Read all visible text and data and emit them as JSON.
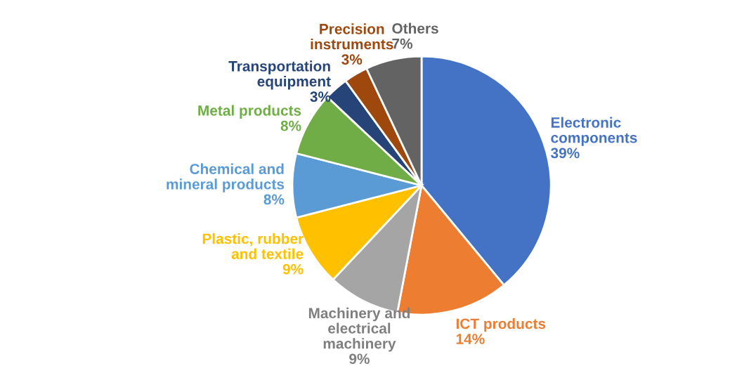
{
  "chart_data": {
    "type": "pie",
    "categories": [
      "Electronic\ncomponents",
      "ICT products",
      "Machinery and\nelectrical\nmachinery",
      "Plastic, rubber\nand textile",
      "Chemical and\nmineral products",
      "Metal products",
      "Transportation\nequipment",
      "Precision\ninstruments",
      "Others"
    ],
    "values": [
      39,
      14,
      9,
      9,
      8,
      8,
      3,
      3,
      7
    ],
    "value_labels": [
      "39%",
      "14%",
      "9%",
      "9%",
      "8%",
      "8%",
      "3%",
      "3%",
      "7%"
    ],
    "colors": [
      "#4472c4",
      "#ed7d31",
      "#a5a5a5",
      "#ffc000",
      "#5b9bd5",
      "#70ad47",
      "#264478",
      "#9e480e",
      "#636363"
    ],
    "legend": false
  }
}
